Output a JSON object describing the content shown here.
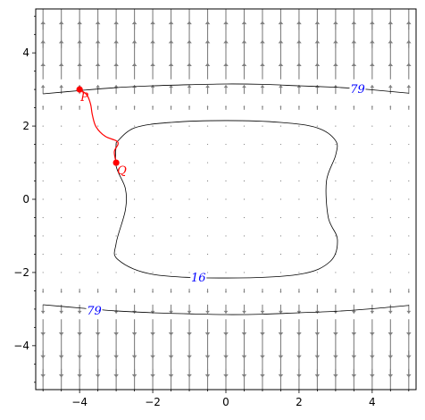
{
  "chart_data": {
    "type": "vector-field-contour",
    "title": "",
    "xlabel": "",
    "ylabel": "",
    "xlim": [
      -5.2,
      5.2
    ],
    "ylim": [
      -5.2,
      5.2
    ],
    "xticks": [
      -4,
      -2,
      0,
      2,
      4
    ],
    "yticks": [
      -4,
      -2,
      0,
      2,
      4
    ],
    "xtick_labels": [
      "−4",
      "−2",
      "0",
      "2",
      "4"
    ],
    "ytick_labels": [
      "−4",
      "−2",
      "0",
      "2",
      "4"
    ],
    "minor_tick_step": 0.5,
    "grid": false,
    "colors": {
      "field_arrows": "#808080",
      "contours": "#000000",
      "contour_labels": "#0000ff",
      "path": "#ff0000"
    },
    "vector_field": {
      "grid_step": 0.5,
      "x_range": [
        -5,
        5
      ],
      "y_range": [
        -5,
        5
      ],
      "direction": "radially outward in y, strongest near top and bottom edges"
    },
    "contours": [
      {
        "level_label": "79",
        "curves": [
          [
            [
              -5.0,
              2.88
            ],
            [
              -4.0,
              2.97
            ],
            [
              -3.0,
              3.05
            ],
            [
              -2.0,
              3.1
            ],
            [
              -1.0,
              3.13
            ],
            [
              0.0,
              3.15
            ],
            [
              1.0,
              3.14
            ],
            [
              2.0,
              3.1
            ],
            [
              3.0,
              3.06
            ],
            [
              3.5,
              3.03
            ],
            [
              4.0,
              2.99
            ],
            [
              5.0,
              2.9
            ]
          ],
          [
            [
              -5.0,
              -2.88
            ],
            [
              -4.0,
              -2.97
            ],
            [
              -3.0,
              -3.05
            ],
            [
              -2.0,
              -3.1
            ],
            [
              -1.0,
              -3.13
            ],
            [
              0.0,
              -3.15
            ],
            [
              1.0,
              -3.14
            ],
            [
              2.0,
              -3.1
            ],
            [
              3.0,
              -3.06
            ],
            [
              4.0,
              -2.99
            ],
            [
              5.0,
              -2.9
            ]
          ]
        ],
        "labels_at": [
          [
            3.6,
            3.03
          ],
          [
            -3.6,
            -3.03
          ]
        ]
      },
      {
        "level_label": "16",
        "curves": [
          [
            [
              -3.0,
              1.55
            ],
            [
              -2.5,
              1.95
            ],
            [
              -1.5,
              2.1
            ],
            [
              0.0,
              2.15
            ],
            [
              1.5,
              2.1
            ],
            [
              2.5,
              1.95
            ],
            [
              3.0,
              1.6
            ],
            [
              3.0,
              1.2
            ],
            [
              2.75,
              0.5
            ],
            [
              2.8,
              -0.5
            ],
            [
              3.05,
              -1.1
            ],
            [
              2.85,
              -1.7
            ],
            [
              2.0,
              -2.05
            ],
            [
              0.0,
              -2.15
            ],
            [
              -2.0,
              -2.05
            ],
            [
              -2.95,
              -1.65
            ],
            [
              -3.0,
              -1.2
            ],
            [
              -2.75,
              -0.3
            ],
            [
              -2.75,
              0.3
            ],
            [
              -3.0,
              0.9
            ],
            [
              -3.0,
              1.55
            ]
          ]
        ],
        "labels_at": [
          [
            -0.75,
            -2.13
          ]
        ]
      }
    ],
    "path": {
      "from": "P",
      "to": "Q",
      "points": [
        [
          -4.0,
          3.0
        ],
        [
          -3.8,
          2.85
        ],
        [
          -3.7,
          2.6
        ],
        [
          -3.65,
          2.3
        ],
        [
          -3.55,
          1.98
        ],
        [
          -3.3,
          1.72
        ],
        [
          -3.0,
          1.6
        ],
        [
          -2.95,
          1.5
        ],
        [
          -3.05,
          1.3
        ],
        [
          -3.0,
          1.0
        ]
      ]
    },
    "points": [
      {
        "label": "P",
        "x": -4.0,
        "y": 3.0
      },
      {
        "label": "Q",
        "x": -3.0,
        "y": 1.0
      }
    ]
  }
}
